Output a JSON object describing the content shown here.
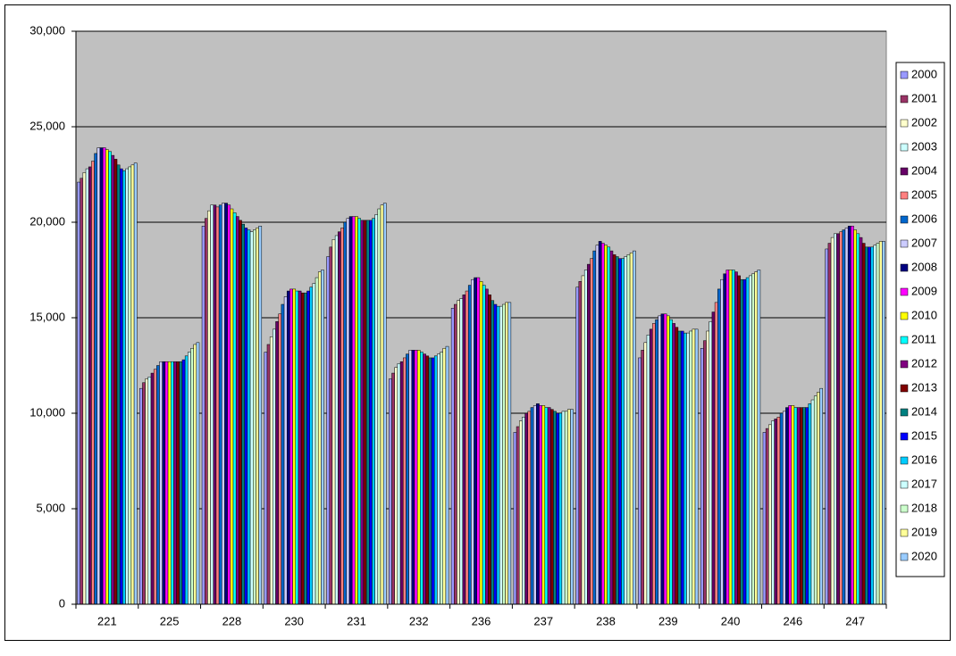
{
  "chart_data": {
    "type": "bar",
    "categories": [
      "221",
      "225",
      "228",
      "230",
      "231",
      "232",
      "236",
      "237",
      "238",
      "239",
      "240",
      "246",
      "247"
    ],
    "ylim": [
      0,
      30000
    ],
    "yticks": [
      {
        "value": 0,
        "label": "0"
      },
      {
        "value": 5000,
        "label": "5,000"
      },
      {
        "value": 10000,
        "label": "10,000"
      },
      {
        "value": 15000,
        "label": "15,000"
      },
      {
        "value": 20000,
        "label": "20,000"
      },
      {
        "value": 25000,
        "label": "25,000"
      },
      {
        "value": 30000,
        "label": "30,000"
      }
    ],
    "grid": true,
    "legend": "right",
    "background": "#c0c0c0",
    "series": [
      {
        "name": "2000",
        "color": "#9999ff",
        "values": [
          22100,
          11300,
          19800,
          13200,
          18200,
          11800,
          15500,
          9000,
          16600,
          12900,
          13400,
          9000,
          18600
        ]
      },
      {
        "name": "2001",
        "color": "#993366",
        "values": [
          22300,
          11600,
          20200,
          13600,
          18700,
          12100,
          15700,
          9300,
          16900,
          13300,
          13800,
          9200,
          18900
        ]
      },
      {
        "name": "2002",
        "color": "#ffffcc",
        "values": [
          22600,
          11800,
          20600,
          14000,
          19100,
          12400,
          15900,
          9600,
          17200,
          13700,
          14300,
          9400,
          19200
        ]
      },
      {
        "name": "2003",
        "color": "#ccffff",
        "values": [
          22800,
          11900,
          20900,
          14400,
          19300,
          12600,
          16000,
          9800,
          17500,
          14100,
          14800,
          9600,
          19400
        ]
      },
      {
        "name": "2004",
        "color": "#660066",
        "values": [
          22900,
          12100,
          20900,
          14800,
          19500,
          12700,
          16200,
          10000,
          17800,
          14400,
          15300,
          9700,
          19400
        ]
      },
      {
        "name": "2005",
        "color": "#ff8080",
        "values": [
          23200,
          12300,
          20800,
          15200,
          19700,
          12900,
          16400,
          10100,
          18100,
          14700,
          15800,
          9800,
          19500
        ]
      },
      {
        "name": "2006",
        "color": "#0066cc",
        "values": [
          23600,
          12500,
          20900,
          15700,
          20000,
          13100,
          16700,
          10300,
          18500,
          14900,
          16500,
          10000,
          19600
        ]
      },
      {
        "name": "2007",
        "color": "#ccccff",
        "values": [
          23900,
          12700,
          21000,
          16100,
          20200,
          13300,
          17000,
          10400,
          18800,
          15100,
          17000,
          10100,
          19700
        ]
      },
      {
        "name": "2008",
        "color": "#000080",
        "values": [
          23900,
          12700,
          21000,
          16400,
          20300,
          13300,
          17100,
          10500,
          19000,
          15200,
          17300,
          10300,
          19800
        ]
      },
      {
        "name": "2009",
        "color": "#ff00ff",
        "values": [
          23900,
          12700,
          20900,
          16500,
          20300,
          13300,
          17100,
          10400,
          18900,
          15200,
          17500,
          10400,
          19800
        ]
      },
      {
        "name": "2010",
        "color": "#ffff00",
        "values": [
          23800,
          12700,
          20700,
          16500,
          20300,
          13300,
          16900,
          10400,
          18800,
          15100,
          17500,
          10400,
          19600
        ]
      },
      {
        "name": "2011",
        "color": "#00ffff",
        "values": [
          23700,
          12700,
          20500,
          16400,
          20200,
          13200,
          16700,
          10300,
          18700,
          14900,
          17500,
          10300,
          19400
        ]
      },
      {
        "name": "2012",
        "color": "#800080",
        "values": [
          23500,
          12700,
          20300,
          16400,
          20100,
          13100,
          16500,
          10300,
          18500,
          14700,
          17400,
          10300,
          19200
        ]
      },
      {
        "name": "2013",
        "color": "#800000",
        "values": [
          23300,
          12700,
          20100,
          16300,
          20100,
          13000,
          16200,
          10200,
          18300,
          14500,
          17200,
          10300,
          18900
        ]
      },
      {
        "name": "2014",
        "color": "#008080",
        "values": [
          23000,
          12700,
          19900,
          16300,
          20100,
          12900,
          15900,
          10100,
          18200,
          14300,
          17000,
          10300,
          18700
        ]
      },
      {
        "name": "2015",
        "color": "#0000ff",
        "values": [
          22800,
          12800,
          19700,
          16400,
          20100,
          12900,
          15700,
          10000,
          18100,
          14300,
          17000,
          10300,
          18700
        ]
      },
      {
        "name": "2016",
        "color": "#00ccff",
        "values": [
          22700,
          13000,
          19600,
          16600,
          20200,
          13000,
          15600,
          10000,
          18100,
          14200,
          17100,
          10500,
          18700
        ]
      },
      {
        "name": "2017",
        "color": "#ccffff",
        "values": [
          22800,
          13200,
          19500,
          16800,
          20400,
          13100,
          15600,
          10100,
          18200,
          14200,
          17200,
          10700,
          18800
        ]
      },
      {
        "name": "2018",
        "color": "#ccffcc",
        "values": [
          22900,
          13400,
          19600,
          17100,
          20700,
          13200,
          15700,
          10100,
          18300,
          14300,
          17300,
          10900,
          18900
        ]
      },
      {
        "name": "2019",
        "color": "#ffff99",
        "values": [
          23000,
          13600,
          19700,
          17400,
          20900,
          13400,
          15800,
          10200,
          18400,
          14400,
          17400,
          11100,
          19000
        ]
      },
      {
        "name": "2020",
        "color": "#99ccff",
        "values": [
          23100,
          13700,
          19800,
          17500,
          21000,
          13500,
          15800,
          10200,
          18500,
          14400,
          17500,
          11300,
          19000
        ]
      }
    ]
  }
}
